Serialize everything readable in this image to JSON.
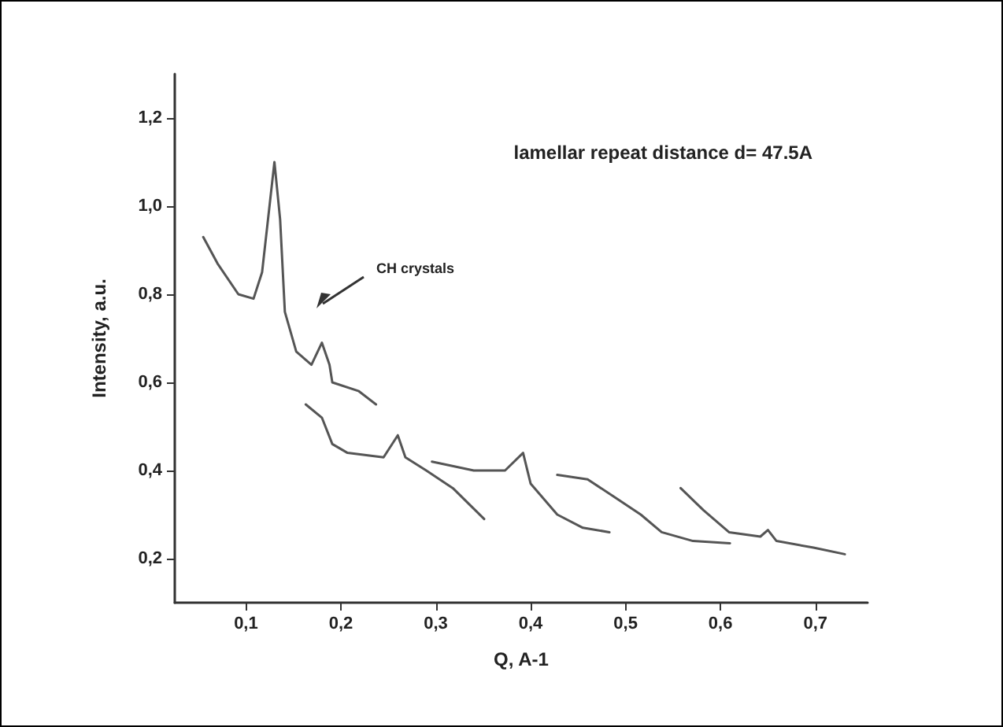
{
  "chart_data": {
    "type": "line",
    "xlabel": "Q, A-1",
    "ylabel": "Intensity, a.u.",
    "marker": "none",
    "line_style": "solid",
    "grid": false,
    "xlim": [
      0.025,
      0.755
    ],
    "ylim": [
      0.1,
      1.3
    ],
    "xticks": [
      {
        "value": 0.1,
        "label": "0,1"
      },
      {
        "value": 0.2,
        "label": "0,2"
      },
      {
        "value": 0.3,
        "label": "0,3"
      },
      {
        "value": 0.4,
        "label": "0,4"
      },
      {
        "value": 0.5,
        "label": "0,5"
      },
      {
        "value": 0.6,
        "label": "0,6"
      },
      {
        "value": 0.7,
        "label": "0,7"
      }
    ],
    "yticks": [
      {
        "value": 0.2,
        "label": "0,2"
      },
      {
        "value": 0.4,
        "label": "0,4"
      },
      {
        "value": 0.6,
        "label": "0,6"
      },
      {
        "value": 0.8,
        "label": "0,8"
      },
      {
        "value": 1.0,
        "label": "1,0"
      },
      {
        "value": 1.2,
        "label": "1,2"
      }
    ],
    "annotations": [
      "lamellar repeat distance d= 47.5A",
      "CH crystals"
    ],
    "series": [
      {
        "color": "#555555",
        "x": [
          0.055,
          0.07,
          0.092,
          0.108,
          0.117,
          0.13,
          0.136,
          0.141,
          0.153,
          0.169,
          0.18,
          0.188,
          0.191,
          0.219,
          0.237
        ],
        "values": [
          0.93,
          0.87,
          0.8,
          0.79,
          0.85,
          1.1,
          0.97,
          0.76,
          0.67,
          0.64,
          0.69,
          0.64,
          0.6,
          0.58,
          0.55
        ]
      },
      {
        "color": "#555555",
        "x": [
          0.163,
          0.18,
          0.191,
          0.207,
          0.245,
          0.26,
          0.268,
          0.29,
          0.318,
          0.351
        ],
        "values": [
          0.55,
          0.52,
          0.46,
          0.44,
          0.43,
          0.48,
          0.43,
          0.4,
          0.36,
          0.29
        ]
      },
      {
        "color": "#555555",
        "x": [
          0.296,
          0.34,
          0.373,
          0.392,
          0.4,
          0.428,
          0.455,
          0.483
        ],
        "values": [
          0.42,
          0.4,
          0.4,
          0.44,
          0.37,
          0.3,
          0.27,
          0.26
        ]
      },
      {
        "color": "#555555",
        "x": [
          0.428,
          0.46,
          0.488,
          0.516,
          0.538,
          0.571,
          0.61
        ],
        "values": [
          0.39,
          0.38,
          0.34,
          0.3,
          0.26,
          0.24,
          0.235
        ]
      },
      {
        "color": "#555555",
        "x": [
          0.558,
          0.582,
          0.609,
          0.642,
          0.65,
          0.659,
          0.698,
          0.731
        ],
        "values": [
          0.36,
          0.31,
          0.26,
          0.25,
          0.265,
          0.24,
          0.225,
          0.21
        ]
      }
    ]
  }
}
